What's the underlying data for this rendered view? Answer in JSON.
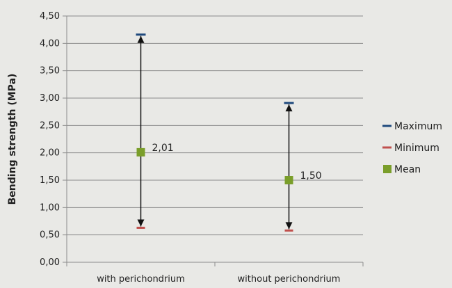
{
  "chart_data": {
    "type": "range",
    "ylabel": "Bending strength  (MPa)",
    "ylim": [
      0,
      4.5
    ],
    "yticks": [
      "0,00",
      "0,50",
      "1,00",
      "1,50",
      "2,00",
      "2,50",
      "3,00",
      "3,50",
      "4,00",
      "4,50"
    ],
    "categories": [
      "with perichondrium",
      "without perichondrium"
    ],
    "series": [
      {
        "name": "Maximum",
        "values": [
          4.16,
          2.91
        ]
      },
      {
        "name": "Minimum",
        "values": [
          0.63,
          0.58
        ]
      },
      {
        "name": "Mean",
        "values": [
          2.01,
          1.5
        ]
      }
    ],
    "data_labels": [
      "2,01",
      "1,50"
    ],
    "grid": true,
    "legend": "right",
    "colors": {
      "Maximum": "#1f497d",
      "Minimum": "#c0504d",
      "Mean": "#7a9e2a"
    }
  }
}
